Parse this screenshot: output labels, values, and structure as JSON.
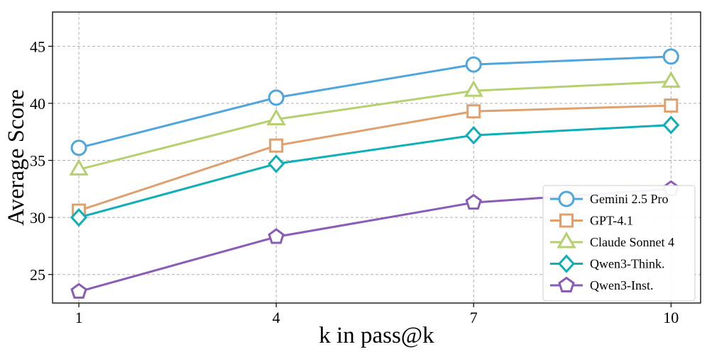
{
  "chart_data": {
    "type": "line",
    "title": "",
    "xlabel": "k in pass@k",
    "ylabel": "Average Score",
    "x": [
      1,
      4,
      7,
      10
    ],
    "xticks": [
      "1",
      "4",
      "7",
      "10"
    ],
    "yticks": [
      "25",
      "30",
      "35",
      "40",
      "45"
    ],
    "ylim": [
      22.5,
      48
    ],
    "xlim": [
      0.6,
      10.45
    ],
    "grid": true,
    "legend_position": "lower-right",
    "series": [
      {
        "name": "Gemini 2.5 Pro",
        "values": [
          36.1,
          40.5,
          43.4,
          44.1
        ],
        "color": "#4ea6dc",
        "marker": "circle"
      },
      {
        "name": "GPT-4.1",
        "values": [
          30.6,
          36.3,
          39.3,
          39.8
        ],
        "color": "#e0a06e",
        "marker": "square"
      },
      {
        "name": "Claude Sonnet 4",
        "values": [
          34.2,
          38.6,
          41.1,
          41.9
        ],
        "color": "#b5d06e",
        "marker": "triangle"
      },
      {
        "name": "Qwen3-Think.",
        "values": [
          30.0,
          34.7,
          37.2,
          38.1
        ],
        "color": "#0eafb6",
        "marker": "diamond"
      },
      {
        "name": "Qwen3-Inst.",
        "values": [
          23.5,
          28.3,
          31.3,
          32.5
        ],
        "color": "#8a5cb8",
        "marker": "pentagon"
      }
    ]
  }
}
